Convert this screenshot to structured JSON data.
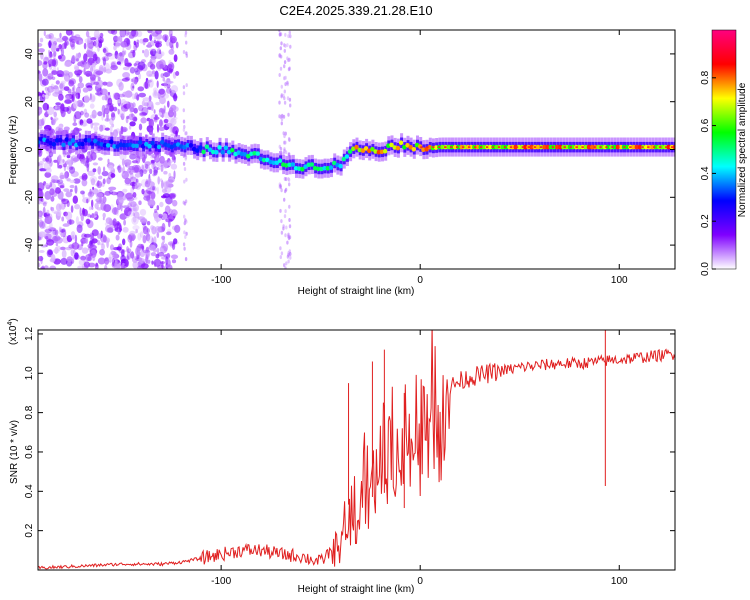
{
  "title": "C2E4.2025.339.21.28.E10",
  "chart_data": [
    {
      "type": "heatmap",
      "title": "C2E4.2025.339.21.28.E10",
      "xlabel": "Height of straight line (km)",
      "ylabel": "Frequency (Hz)",
      "xlim": [
        -192,
        128
      ],
      "ylim": [
        -50,
        50
      ],
      "xticks": [
        -100,
        0,
        100
      ],
      "yticks": [
        -40,
        -20,
        0,
        20,
        40
      ],
      "colorbar": {
        "label": "Normalized spectral amplitude",
        "range": [
          0,
          1
        ],
        "ticks": [
          "0.0",
          "0.2",
          "0.4",
          "0.6",
          "0.8"
        ],
        "colormap": "rainbow",
        "colors": [
          "#ffffff",
          "#7f00ff",
          "#0000ff",
          "#00ffff",
          "#00ff00",
          "#ffff00",
          "#ff0000",
          "#ff007f"
        ]
      },
      "ridge": {
        "name": "dominant frequency",
        "x": [
          -190,
          -180,
          -170,
          -160,
          -150,
          -140,
          -130,
          -120,
          -110,
          -100,
          -90,
          -80,
          -70,
          -60,
          -50,
          -45,
          -40,
          -35,
          -30,
          -25,
          -20,
          -15,
          -10,
          -5,
          0,
          10,
          20,
          40,
          60,
          80,
          100,
          128
        ],
        "y": [
          4,
          3,
          3,
          3,
          2,
          2,
          2,
          1,
          0,
          0,
          -2,
          -3,
          -6,
          -7,
          -7,
          -7,
          -6,
          0,
          0,
          0,
          0,
          1,
          2,
          2,
          0,
          1,
          1,
          1,
          1,
          1,
          1,
          1
        ]
      },
      "noise_region_x": [
        -192,
        -122
      ]
    },
    {
      "type": "line",
      "title": "",
      "xlabel": "Height of straight line (km)",
      "ylabel": "SNR (10 * v/v)",
      "y_multiplier": "(x10",
      "y_multiplier_exp": "4",
      "y_multiplier_close": ")",
      "xlim": [
        -192,
        128
      ],
      "ylim": [
        0,
        1.22
      ],
      "xticks": [
        -100,
        0,
        100
      ],
      "yticks": [
        "0.2",
        "0.4",
        "0.6",
        "0.8",
        "1.0",
        "1.2"
      ],
      "series": [
        {
          "name": "SNR",
          "color": "#e02020",
          "x": [
            -192,
            -170,
            -150,
            -130,
            -120,
            -110,
            -100,
            -90,
            -80,
            -70,
            -60,
            -50,
            -45,
            -40,
            -35,
            -30,
            -25,
            -20,
            -15,
            -10,
            -5,
            0,
            5,
            10,
            15,
            20,
            25,
            30,
            40,
            50,
            60,
            70,
            80,
            90,
            100,
            110,
            120,
            128
          ],
          "values": [
            0.01,
            0.02,
            0.03,
            0.03,
            0.04,
            0.06,
            0.08,
            0.1,
            0.1,
            0.08,
            0.07,
            0.04,
            0.1,
            0.2,
            0.3,
            0.4,
            0.5,
            0.55,
            0.6,
            0.65,
            0.7,
            0.75,
            0.82,
            0.88,
            0.93,
            0.96,
            0.98,
            0.99,
            1.01,
            1.03,
            1.04,
            1.05,
            1.05,
            1.06,
            1.07,
            1.08,
            1.09,
            1.1
          ],
          "spikes": [
            {
              "x": -36,
              "y": 0.95
            },
            {
              "x": -24,
              "y": 1.06
            },
            {
              "x": -18,
              "y": 1.12
            },
            {
              "x": -8,
              "y": 0.9
            },
            {
              "x": 93,
              "y": 1.22
            }
          ]
        }
      ]
    }
  ]
}
